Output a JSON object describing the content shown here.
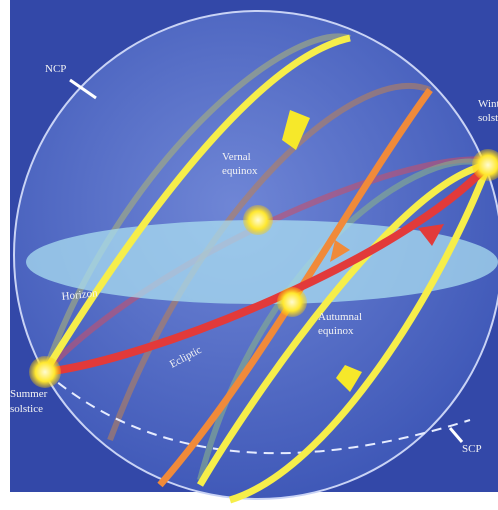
{
  "labels": {
    "ncp": "NCP",
    "vernal_equinox": [
      "Vernal",
      "equinox"
    ],
    "winter_solstice": [
      "Winter",
      "solstice"
    ],
    "horizon": "Horizon",
    "autumnal_equinox": [
      "Autumnal",
      "equinox"
    ],
    "ecliptic": "Ecliptic",
    "summer_solstice": [
      "Summer",
      "solstice"
    ],
    "scp": "SCP"
  }
}
